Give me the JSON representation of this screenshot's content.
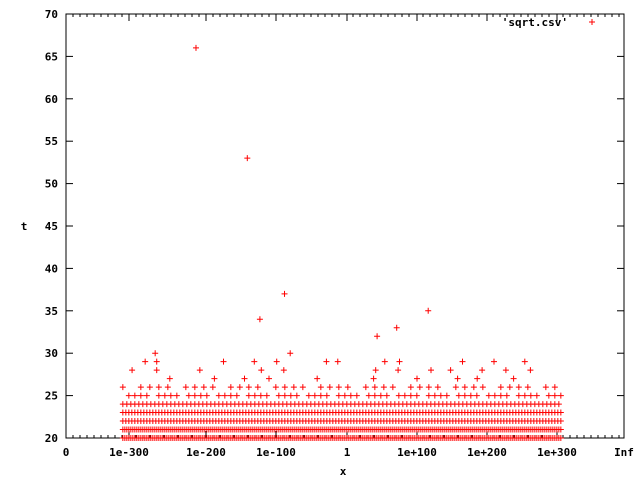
{
  "chart_data": {
    "type": "scatter",
    "title": "",
    "xlabel": "x",
    "ylabel": "t",
    "ylim": [
      20,
      70
    ],
    "x_scale": "log10 of |x| with 0 and Inf endpoints",
    "x_ticks": [
      "0",
      "1e-300",
      "1e-200",
      "1e-100",
      "1",
      "1e+100",
      "1e+200",
      "1e+300",
      "Inf"
    ],
    "y_ticks": [
      "20",
      "25",
      "30",
      "35",
      "40",
      "45",
      "50",
      "55",
      "60",
      "65",
      "70"
    ],
    "grid": false,
    "legend_position": "top-right",
    "marker": "+",
    "color": "#ff0000",
    "series": [
      {
        "name": "'sqrt.csv'",
        "dense_band": {
          "x_from": "1e-308",
          "x_to": "1e+308",
          "t_values": [
            20,
            21,
            22,
            23,
            24,
            25,
            26
          ]
        },
        "outliers": [
          {
            "x": "1e-213",
            "t": 66
          },
          {
            "x": "1e-141",
            "t": 53
          },
          {
            "x": "1e-123",
            "t": 34
          },
          {
            "x": "1e-88",
            "t": 37
          },
          {
            "x": "1e-80",
            "t": 30
          },
          {
            "x": "1e-266",
            "t": 30
          },
          {
            "x": "1e-279",
            "t": 29
          },
          {
            "x": "1e-264",
            "t": 29
          },
          {
            "x": "1e-175",
            "t": 29
          },
          {
            "x": "1e-131",
            "t": 29
          },
          {
            "x": "1e-99",
            "t": 29
          },
          {
            "x": "1e-29",
            "t": 29
          },
          {
            "x": "1e-13",
            "t": 29
          },
          {
            "x": "1e+54",
            "t": 29
          },
          {
            "x": "1e+75",
            "t": 29
          },
          {
            "x": "1e+165",
            "t": 29
          },
          {
            "x": "1e+210",
            "t": 29
          },
          {
            "x": "1e+254",
            "t": 29
          },
          {
            "x": "1e+43",
            "t": 32
          },
          {
            "x": "1e+71",
            "t": 33
          },
          {
            "x": "1e+116",
            "t": 35
          },
          {
            "x": "1e-296",
            "t": 28
          },
          {
            "x": "1e-264",
            "t": 28
          },
          {
            "x": "1e-208",
            "t": 28
          },
          {
            "x": "1e-121",
            "t": 28
          },
          {
            "x": "1e-89",
            "t": 28
          },
          {
            "x": "1e+41",
            "t": 28
          },
          {
            "x": "1e+73",
            "t": 28
          },
          {
            "x": "1e+120",
            "t": 28
          },
          {
            "x": "1e+148",
            "t": 28
          },
          {
            "x": "1e+193",
            "t": 28
          },
          {
            "x": "1e+227",
            "t": 28
          },
          {
            "x": "1e+262",
            "t": 28
          },
          {
            "x": "1e-247",
            "t": 27
          },
          {
            "x": "1e-188",
            "t": 27
          },
          {
            "x": "1e-145",
            "t": 27
          },
          {
            "x": "1e-110",
            "t": 27
          },
          {
            "x": "1e-42",
            "t": 27
          },
          {
            "x": "1e+38",
            "t": 27
          },
          {
            "x": "1e+100",
            "t": 27
          },
          {
            "x": "1e+158",
            "t": 27
          },
          {
            "x": "1e+186",
            "t": 27
          },
          {
            "x": "1e+238",
            "t": 27
          }
        ]
      }
    ]
  }
}
